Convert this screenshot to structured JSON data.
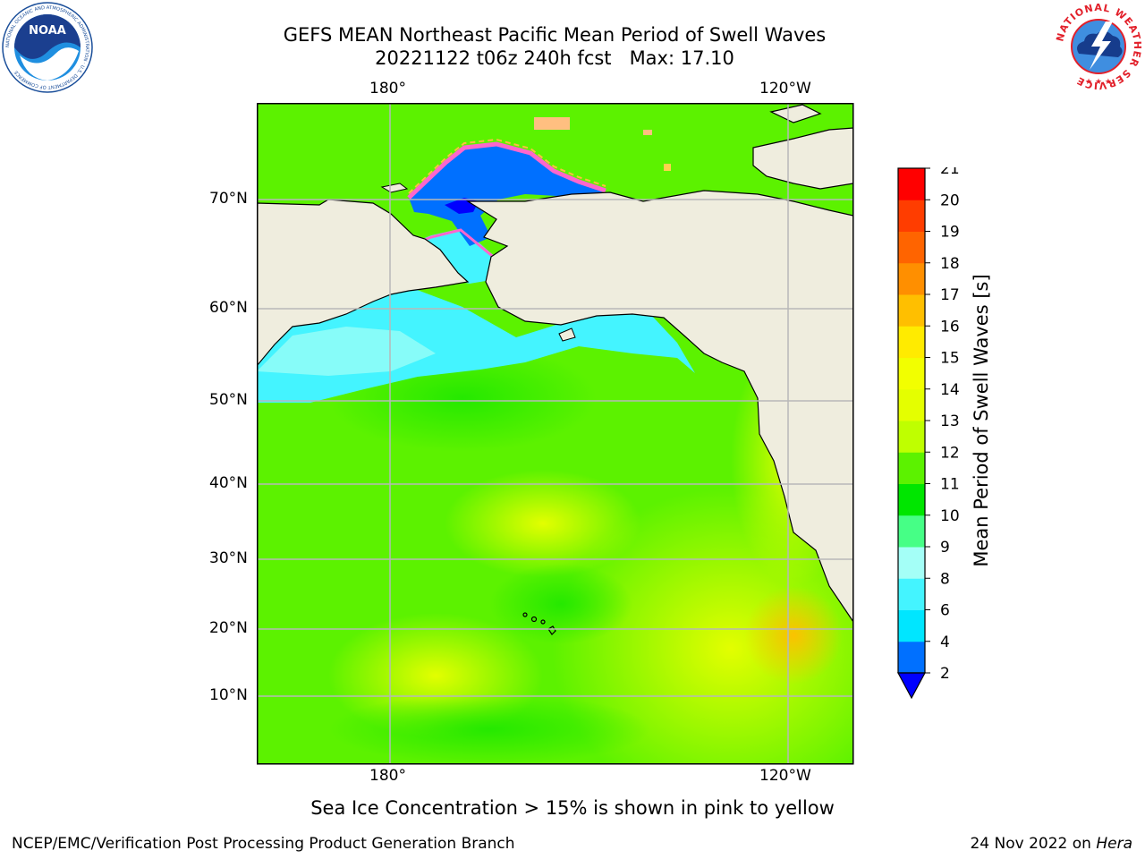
{
  "title": {
    "line1": "GEFS MEAN Northeast Pacific Mean Period of Swell Waves",
    "line2": "20221122 t06z 240h fcst   Max: 17.10"
  },
  "map": {
    "top_ticks": [
      "180°",
      "120°W"
    ],
    "bottom_ticks": [
      "180°",
      "120°W"
    ],
    "lat_ticks": [
      "70°N",
      "60°N",
      "50°N",
      "40°N",
      "30°N",
      "20°N",
      "10°N"
    ],
    "land_color": "#efedde",
    "gridline_color": "#b8b8b8"
  },
  "colorbar": {
    "label": "Mean Period of Swell Waves [s]",
    "ticks": [
      "2",
      "4",
      "6",
      "8",
      "9",
      "10",
      "11",
      "12",
      "13",
      "14",
      "15",
      "16",
      "17",
      "18",
      "19",
      "20",
      "21"
    ],
    "colors": [
      "#0070ff",
      "#00e6ff",
      "#44f4ff",
      "#a4fff7",
      "#46ff86",
      "#00e600",
      "#5cf200",
      "#bfff00",
      "#e4ff00",
      "#f2ff00",
      "#ffeb00",
      "#ffbf00",
      "#ff8f00",
      "#ff6400",
      "#ff3d00",
      "#ff0000"
    ],
    "under_color": "#0000ff"
  },
  "subtitle": "Sea Ice Concentration > 15% is shown in pink to yellow",
  "footer": {
    "left": "NCEP/EMC/Verification Post Processing Product Generation Branch",
    "date": "24 Nov 2022 on ",
    "machine": "Hera"
  },
  "logos": {
    "noaa_text": "NOAA",
    "noaa_ring_text": "NATIONAL OCEANIC AND ATMOSPHERIC ADMINISTRATION · U.S. DEPARTMENT OF COMMERCE",
    "nws_ring_text": "NATIONAL WEATHER SERVICE"
  }
}
